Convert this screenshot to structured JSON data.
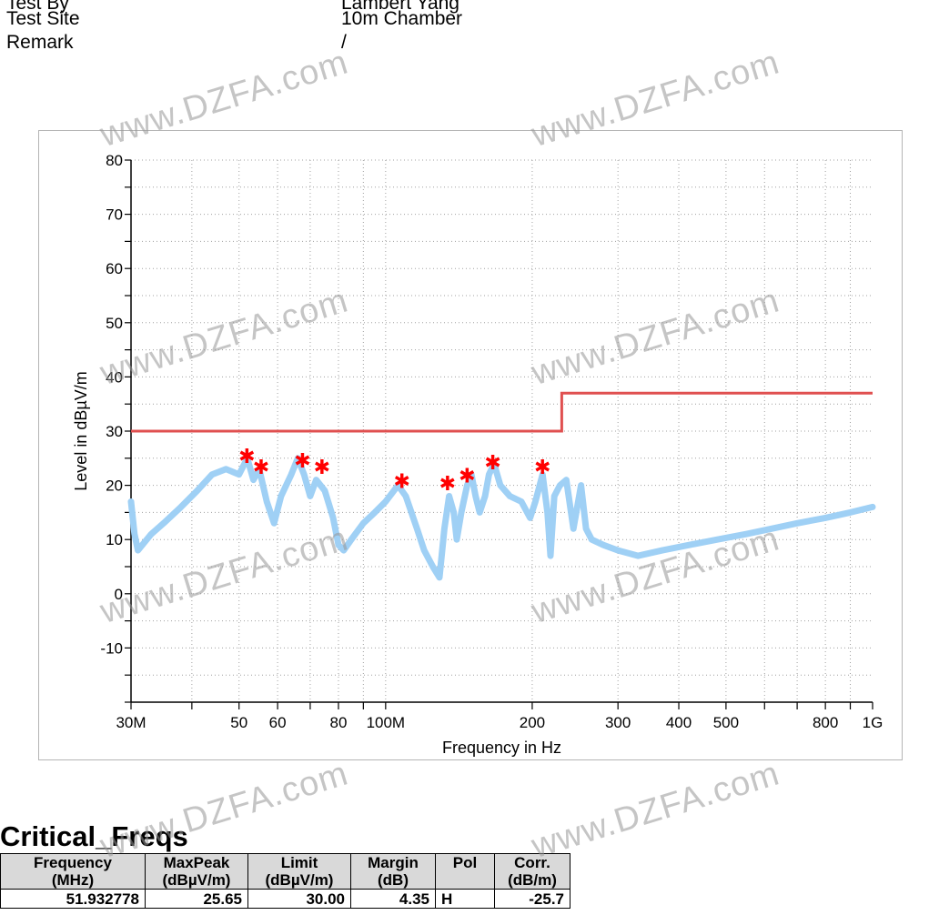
{
  "header": {
    "rows": [
      {
        "label": "Test By",
        "value": "Lambert Yang"
      },
      {
        "label": "Test Site",
        "value": "10m Chamber"
      },
      {
        "label": "Remark",
        "value": "/"
      }
    ]
  },
  "watermark_text": "www.DZFA.com",
  "chart_data": {
    "type": "line",
    "xlabel": "Frequency in Hz",
    "ylabel": "Level in dBµV/m",
    "x_scale": "log",
    "xlim_mhz": [
      30,
      1000
    ],
    "ylim": [
      -20,
      80
    ],
    "y_ticks": [
      80,
      70,
      60,
      50,
      40,
      30,
      20,
      10,
      0,
      -10
    ],
    "y_tick_labels": [
      "80",
      "70",
      "60",
      "50",
      "40",
      "30",
      "20",
      "10",
      "0",
      "-10"
    ],
    "x_ticks_mhz": [
      30,
      50,
      60,
      80,
      100,
      200,
      300,
      400,
      500,
      800,
      1000
    ],
    "x_tick_labels": [
      "30M",
      "50",
      "60",
      "80",
      "100M",
      "200",
      "300",
      "400",
      "500",
      "800",
      "1G"
    ],
    "grid": true,
    "colors": {
      "limit": "#e05050",
      "trace": "#9fd0f5",
      "peak": "#ff0000",
      "axis": "#000000",
      "grid": "#a0a0a0"
    },
    "limit_line": {
      "name": "",
      "points_mhz": [
        [
          30,
          30
        ],
        [
          230,
          30
        ],
        [
          230,
          37
        ],
        [
          1000,
          37
        ]
      ]
    },
    "trace": {
      "name": "",
      "points_mhz": [
        [
          30,
          17
        ],
        [
          30.5,
          11
        ],
        [
          31,
          8
        ],
        [
          33,
          11
        ],
        [
          35,
          13
        ],
        [
          38,
          16
        ],
        [
          41,
          19
        ],
        [
          44,
          22
        ],
        [
          47,
          23
        ],
        [
          50,
          22
        ],
        [
          52,
          25
        ],
        [
          53.5,
          21
        ],
        [
          55,
          23
        ],
        [
          57,
          17
        ],
        [
          59,
          13
        ],
        [
          61,
          18
        ],
        [
          64,
          22
        ],
        [
          66,
          25
        ],
        [
          68,
          22
        ],
        [
          70,
          18
        ],
        [
          72,
          21
        ],
        [
          75,
          19
        ],
        [
          78,
          14
        ],
        [
          80,
          9
        ],
        [
          82,
          8
        ],
        [
          85,
          10
        ],
        [
          90,
          13
        ],
        [
          95,
          15
        ],
        [
          100,
          17
        ],
        [
          106,
          20
        ],
        [
          110,
          18
        ],
        [
          116,
          12
        ],
        [
          120,
          8
        ],
        [
          125,
          5
        ],
        [
          129,
          3
        ],
        [
          132,
          12
        ],
        [
          135,
          18
        ],
        [
          138,
          15
        ],
        [
          140,
          10
        ],
        [
          143,
          15
        ],
        [
          147,
          20
        ],
        [
          150,
          22
        ],
        [
          153,
          18
        ],
        [
          156,
          15
        ],
        [
          160,
          18
        ],
        [
          163,
          22
        ],
        [
          167,
          24
        ],
        [
          172,
          20
        ],
        [
          180,
          18
        ],
        [
          190,
          17
        ],
        [
          198,
          14
        ],
        [
          203,
          17
        ],
        [
          210,
          22
        ],
        [
          215,
          15
        ],
        [
          218,
          7
        ],
        [
          222,
          18
        ],
        [
          228,
          20
        ],
        [
          235,
          21
        ],
        [
          243,
          12
        ],
        [
          252,
          20
        ],
        [
          258,
          12
        ],
        [
          265,
          10
        ],
        [
          280,
          9
        ],
        [
          300,
          8
        ],
        [
          330,
          7
        ],
        [
          370,
          8
        ],
        [
          420,
          9
        ],
        [
          480,
          10
        ],
        [
          550,
          11
        ],
        [
          620,
          12
        ],
        [
          700,
          13
        ],
        [
          800,
          14
        ],
        [
          900,
          15
        ],
        [
          1000,
          16
        ]
      ]
    },
    "peaks": {
      "name": "",
      "points_mhz": [
        [
          51.9,
          25.65
        ],
        [
          55.5,
          23.6
        ],
        [
          67.5,
          24.8
        ],
        [
          74,
          23.6
        ],
        [
          108,
          21
        ],
        [
          134,
          20.6
        ],
        [
          147,
          22
        ],
        [
          166,
          24.5
        ],
        [
          210,
          23.6
        ]
      ]
    }
  },
  "table": {
    "title": "Critical_Freqs",
    "columns": [
      {
        "line1": "Frequency",
        "line2": "(MHz)"
      },
      {
        "line1": "MaxPeak",
        "line2": "(dBµV/m)"
      },
      {
        "line1": "Limit",
        "line2": "(dBµV/m)"
      },
      {
        "line1": "Margin",
        "line2": "(dB)"
      },
      {
        "line1": "Pol",
        "line2": ""
      },
      {
        "line1": "Corr.",
        "line2": "(dB/m)"
      }
    ],
    "rows": [
      [
        "51.932778",
        "25.65",
        "30.00",
        "4.35",
        "H",
        "-25.7"
      ]
    ]
  }
}
